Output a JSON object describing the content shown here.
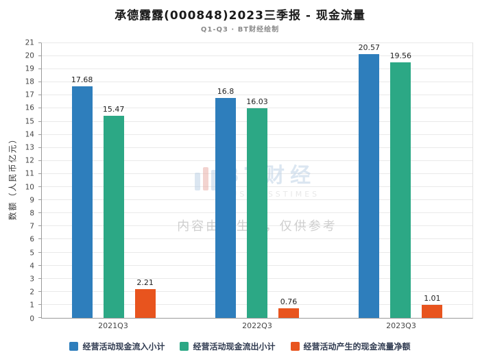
{
  "header": {
    "title": "承德露露(000848)2023三季报 - 现金流量",
    "subtitle": "Q1-Q3 · BT财经绘制"
  },
  "watermark": {
    "logo_text": "BT财经",
    "logo_sub": "BUSINESSTIMES",
    "disclaimer": "内容由AI生成，仅供参考"
  },
  "chart_data": {
    "type": "bar",
    "title": "承德露露(000848)2023三季报 - 现金流量",
    "subtitle": "Q1-Q3 · BT财经绘制",
    "categories": [
      "2021Q3",
      "2022Q3",
      "2023Q3"
    ],
    "series": [
      {
        "name": "经营活动现金流入小计",
        "color": "#2E7EBC",
        "values": [
          17.68,
          16.8,
          20.57
        ]
      },
      {
        "name": "经营活动现金流出小计",
        "color": "#2CA885",
        "values": [
          15.47,
          16.03,
          19.56
        ]
      },
      {
        "name": "经营活动产生的现金流量净额",
        "color": "#E8541E",
        "values": [
          2.21,
          0.76,
          1.01
        ]
      }
    ],
    "xlabel": "",
    "ylabel": "数额（人民币亿元）",
    "ylim": [
      0,
      21
    ],
    "ytick_step": 1,
    "grid": true,
    "legend_position": "bottom"
  }
}
